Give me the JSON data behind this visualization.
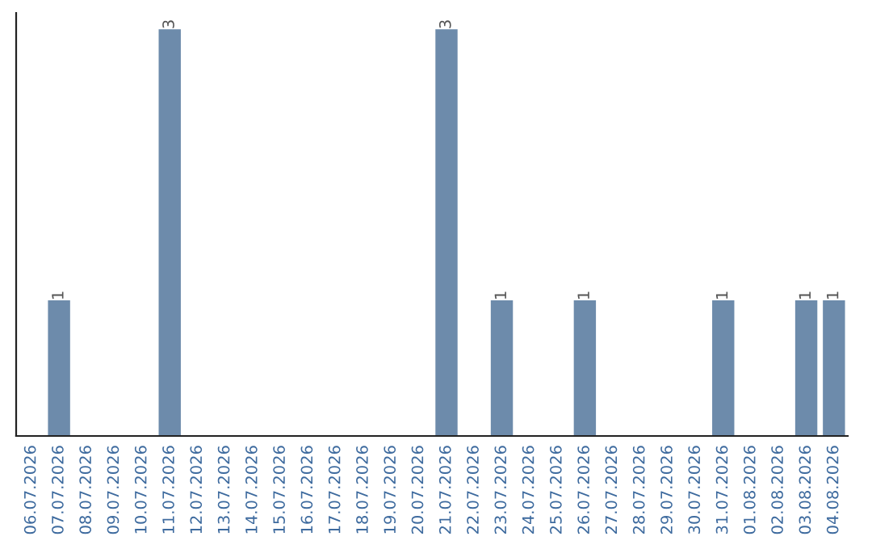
{
  "chart_data": {
    "type": "bar",
    "categories": [
      "06.07.2026",
      "07.07.2026",
      "08.07.2026",
      "09.07.2026",
      "10.07.2026",
      "11.07.2026",
      "12.07.2026",
      "13.07.2026",
      "14.07.2026",
      "15.07.2026",
      "16.07.2026",
      "17.07.2026",
      "18.07.2026",
      "19.07.2026",
      "20.07.2026",
      "21.07.2026",
      "22.07.2026",
      "23.07.2026",
      "24.07.2026",
      "25.07.2026",
      "26.07.2026",
      "27.07.2026",
      "28.07.2026",
      "29.07.2026",
      "30.07.2026",
      "31.07.2026",
      "01.08.2026",
      "02.08.2026",
      "03.08.2026",
      "04.08.2026"
    ],
    "values": [
      0,
      1,
      0,
      0,
      0,
      3,
      0,
      0,
      0,
      0,
      0,
      0,
      0,
      0,
      0,
      3,
      0,
      1,
      0,
      0,
      1,
      0,
      0,
      0,
      0,
      1,
      0,
      0,
      1,
      1
    ],
    "value_labels": [
      null,
      "1",
      null,
      null,
      null,
      "3",
      null,
      null,
      null,
      null,
      null,
      null,
      null,
      null,
      null,
      "3",
      null,
      "1",
      null,
      null,
      "1",
      null,
      null,
      null,
      null,
      "1",
      null,
      null,
      "1",
      "1"
    ],
    "color": "#6d8bab",
    "tick_labels": "x",
    "grid": false
  }
}
